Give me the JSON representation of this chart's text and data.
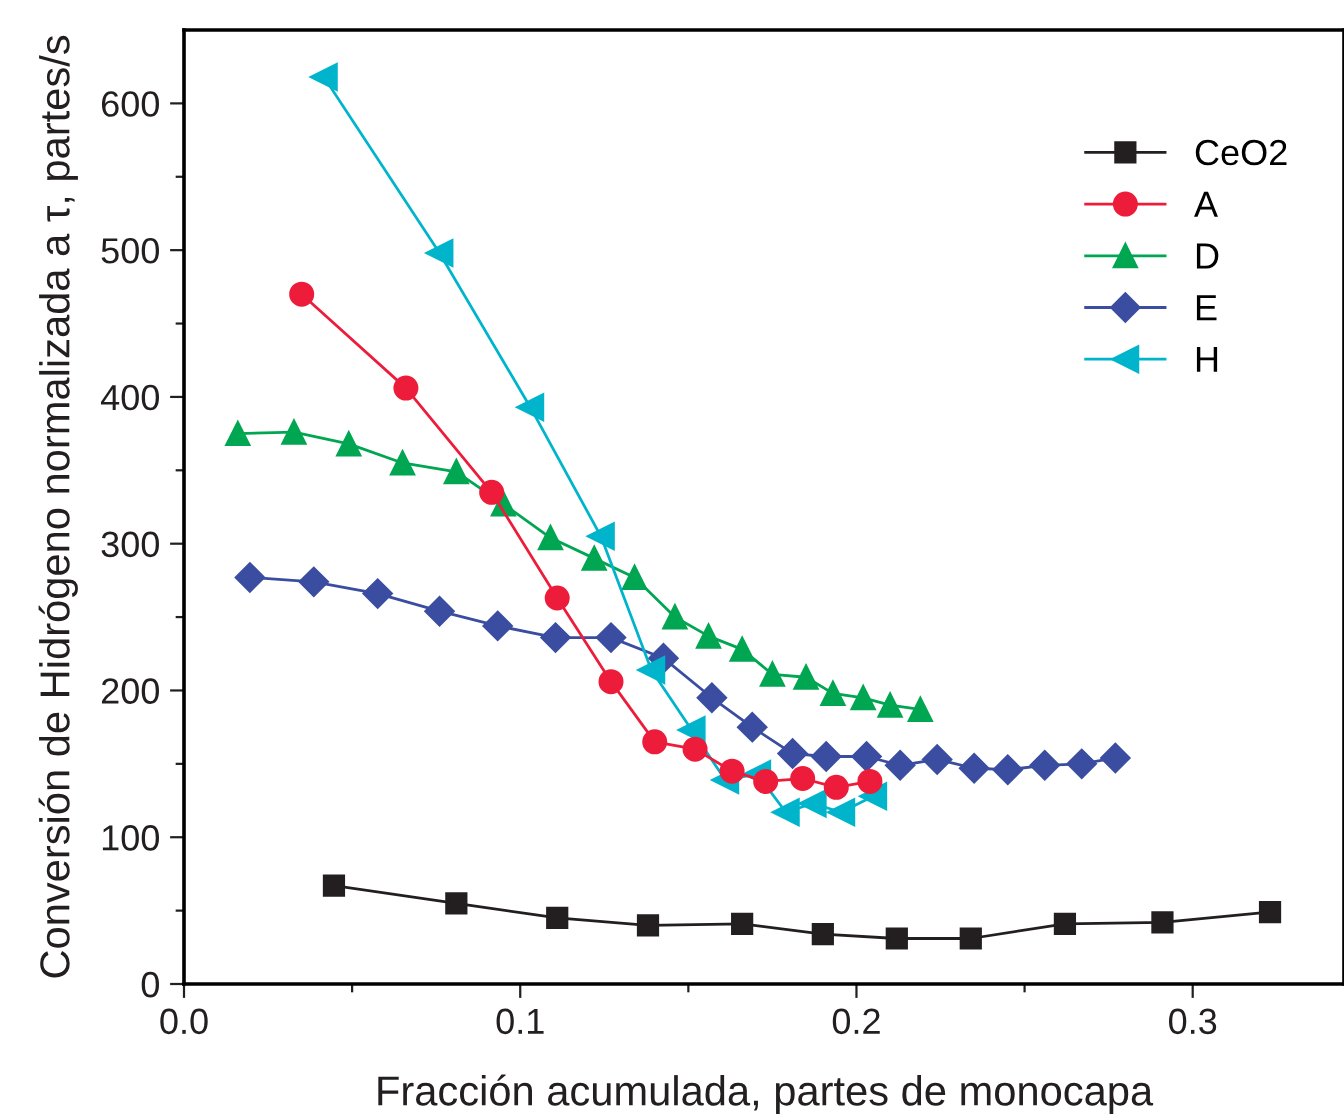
{
  "chart_data": {
    "type": "line",
    "xlabel": "Fracción acumulada, partes de monocapa",
    "ylabel": "Conversión de Hidrógeno normalizada a τ, partes/s",
    "xlim": [
      0,
      0.345
    ],
    "ylim": [
      0,
      650
    ],
    "xticks": [
      {
        "value": 0,
        "label": "0.0"
      },
      0.1,
      0.2,
      0.3,
      {
        "value": 0.05,
        "label": null
      },
      {
        "value": 0.15,
        "label": null
      },
      {
        "value": 0.25,
        "label": null
      }
    ],
    "yticks": [
      0,
      100,
      200,
      300,
      400,
      500,
      600,
      {
        "value": 50,
        "label": null
      },
      {
        "value": 150,
        "label": null
      },
      {
        "value": 250,
        "label": null
      },
      {
        "value": 350,
        "label": null
      },
      {
        "value": 450,
        "label": null
      },
      {
        "value": 550,
        "label": null
      }
    ],
    "grid": false,
    "legend": "top right",
    "series": [
      {
        "name": "CeO2",
        "color": "#231f20",
        "marker": "square",
        "x": [
          0.0446,
          0.081,
          0.111,
          0.138,
          0.166,
          0.19,
          0.212,
          0.234,
          0.262,
          0.291,
          0.323
        ],
        "values": [
          67,
          55,
          45,
          40,
          41,
          34,
          31,
          31,
          41,
          42,
          49
        ]
      },
      {
        "name": "A",
        "color": "#ed1c3a",
        "marker": "circle",
        "x": [
          0.035,
          0.066,
          0.0915,
          0.111,
          0.127,
          0.14,
          0.152,
          0.163,
          0.173,
          0.184,
          0.194,
          0.204
        ],
        "values": [
          470,
          406,
          335,
          263,
          206,
          165,
          160,
          145,
          138,
          140,
          134,
          138
        ]
      },
      {
        "name": "D",
        "color": "#00a651",
        "marker": "triangle",
        "x": [
          0.016,
          0.0327,
          0.049,
          0.065,
          0.081,
          0.095,
          0.109,
          0.122,
          0.134,
          0.146,
          0.156,
          0.166,
          0.175,
          0.185,
          0.193,
          0.202,
          0.21,
          0.219
        ],
        "values": [
          375,
          376,
          368,
          355,
          349,
          327,
          304,
          290,
          277,
          250,
          237,
          228,
          211,
          209,
          198,
          195,
          190,
          187
        ]
      },
      {
        "name": "E",
        "color": "#3a4da0",
        "marker": "diamond",
        "x": [
          0.0196,
          0.0386,
          0.0576,
          0.076,
          0.0933,
          0.1105,
          0.127,
          0.1426,
          0.157,
          0.169,
          0.181,
          0.191,
          0.203,
          0.213,
          0.224,
          0.235,
          0.245,
          0.256,
          0.267,
          0.277
        ],
        "values": [
          277,
          274,
          266,
          254,
          244,
          236,
          236,
          222,
          195,
          175,
          157,
          155,
          155,
          149,
          153,
          147,
          146,
          149,
          150,
          154
        ]
      },
      {
        "name": "H",
        "color": "#00b4cc",
        "marker": "triangle_left",
        "x": [
          0.0416,
          0.076,
          0.103,
          0.124,
          0.139,
          0.151,
          0.161,
          0.1705,
          0.179,
          0.187,
          0.1955,
          0.205
        ],
        "values": [
          618,
          498,
          393,
          305,
          214,
          173,
          139,
          143,
          117,
          123,
          117,
          128
        ]
      }
    ]
  }
}
